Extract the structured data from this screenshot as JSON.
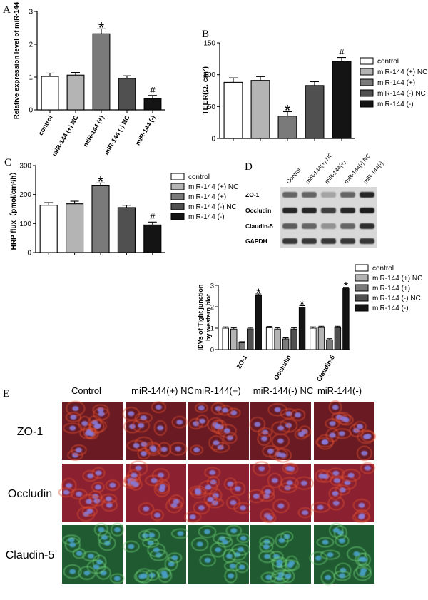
{
  "colors": {
    "control": "#ffffff",
    "miR144_pos_NC": "#b4b4b4",
    "miR144_pos": "#7a7a7a",
    "miR144_neg_NC": "#505050",
    "miR144_neg": "#141414"
  },
  "legend_labels": [
    "control",
    "miR-144 (+) NC",
    "miR-144 (+)",
    "miR-144 (-) NC",
    "miR-144 (-)"
  ],
  "chart_data": [
    {
      "panel": "A",
      "type": "bar",
      "categories": [
        "control",
        "miR-144 (+) NC",
        "miR-144 (+)",
        "miR-144 (-) NC",
        "miR-144 (-)"
      ],
      "values": [
        1.02,
        1.06,
        2.32,
        0.96,
        0.34
      ],
      "errors": [
        0.1,
        0.08,
        0.15,
        0.08,
        0.1
      ],
      "marks": [
        "",
        "",
        "*",
        "",
        "#"
      ],
      "ylabel": "Relative expression level of miR-144",
      "ylim": [
        0,
        3
      ],
      "yticks": [
        0,
        1,
        2,
        3
      ]
    },
    {
      "panel": "B",
      "type": "bar",
      "categories": [
        "control",
        "miR-144 (+) NC",
        "miR-144 (+)",
        "miR-144 (-) NC",
        "miR-144 (-)"
      ],
      "values": [
        88,
        91,
        35,
        83,
        121
      ],
      "errors": [
        7,
        6,
        7,
        6,
        6
      ],
      "marks": [
        "",
        "",
        "*",
        "",
        "#"
      ],
      "ylabel": "TEER(Ω. cm²)",
      "ylim": [
        0,
        150
      ],
      "yticks": [
        0,
        50,
        100,
        150
      ],
      "legend": "right"
    },
    {
      "panel": "C",
      "type": "bar",
      "categories": [
        "control",
        "miR-144 (+) NC",
        "miR-144 (+)",
        "miR-144 (-) NC",
        "miR-144 (-)"
      ],
      "values": [
        163,
        168,
        230,
        155,
        95
      ],
      "errors": [
        9,
        9,
        10,
        8,
        10
      ],
      "marks": [
        "",
        "",
        "*",
        "",
        "#"
      ],
      "ylabel": "HRP flux（pmol/cm²/h）",
      "ylim": [
        0,
        300
      ],
      "yticks": [
        0,
        100,
        200,
        300
      ],
      "legend": "right"
    },
    {
      "panel": "D",
      "type": "bar",
      "categories": [
        "ZO-1",
        "Occludin",
        "Claudin-5"
      ],
      "series": [
        {
          "name": "control",
          "values": [
            1.0,
            1.02,
            1.0
          ],
          "errors": [
            0.06,
            0.06,
            0.06
          ]
        },
        {
          "name": "miR-144 (+) NC",
          "values": [
            0.96,
            0.96,
            1.03
          ],
          "errors": [
            0.06,
            0.06,
            0.06
          ]
        },
        {
          "name": "miR-144 (+)",
          "values": [
            0.32,
            0.5,
            0.46
          ],
          "errors": [
            0.05,
            0.05,
            0.05
          ]
        },
        {
          "name": "miR-144 (-) NC",
          "values": [
            0.97,
            0.96,
            1.03
          ],
          "errors": [
            0.06,
            0.06,
            0.06
          ]
        },
        {
          "name": "miR-144 (-)",
          "values": [
            2.53,
            1.98,
            2.85
          ],
          "errors": [
            0.07,
            0.07,
            0.06
          ]
        }
      ],
      "marks": [
        "*",
        "*",
        "*"
      ],
      "ylabel": "IDVs of Tight junction by western blot",
      "ylim": [
        0,
        3
      ],
      "yticks": [
        0,
        1,
        2,
        3
      ],
      "legend": "top-right"
    }
  ],
  "panels": {
    "A": "A",
    "B": "B",
    "C": "C",
    "D": "D",
    "E": "E"
  },
  "western": {
    "lanes": [
      "Control",
      "miR-144(+) NC",
      "miR-144(+)",
      "miR-144(-) NC",
      "miR-144(-)"
    ],
    "bands": [
      "ZO-1",
      "Occludin",
      "Claudin-5",
      "GAPDH"
    ],
    "intensity": [
      [
        0.55,
        0.55,
        0.2,
        0.55,
        0.9
      ],
      [
        0.9,
        0.9,
        0.75,
        0.9,
        0.95
      ],
      [
        0.6,
        0.55,
        0.3,
        0.55,
        0.85
      ],
      [
        0.8,
        0.8,
        0.8,
        0.8,
        0.8
      ]
    ]
  },
  "micro": {
    "columns": [
      "Control",
      "miR-144(+) NC",
      "miR-144(+)",
      "miR-144(-) NC",
      "miR-144(-)"
    ],
    "rows": [
      {
        "label": "ZO-1",
        "stain": "red"
      },
      {
        "label": "Occludin",
        "stain": "red"
      },
      {
        "label": "Claudin-5",
        "stain": "green"
      }
    ]
  }
}
